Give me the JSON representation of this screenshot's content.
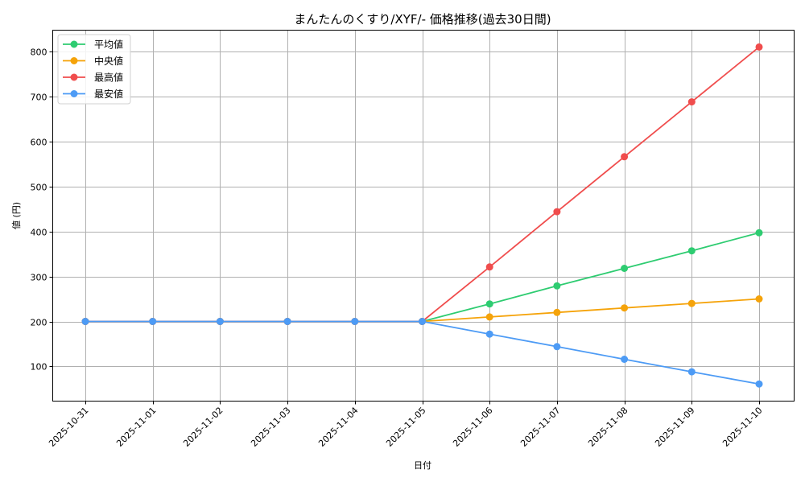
{
  "chart_data": {
    "type": "line",
    "title": "まんたんのくすり/XYF/- 価格推移(過去30日間)",
    "xlabel": "日付",
    "ylabel": "値 (円)",
    "categories": [
      "2025-10-31",
      "2025-11-01",
      "2025-11-02",
      "2025-11-03",
      "2025-11-04",
      "2025-11-05",
      "2025-11-06",
      "2025-11-07",
      "2025-11-08",
      "2025-11-09",
      "2025-11-10"
    ],
    "yticks": [
      100,
      200,
      300,
      400,
      500,
      600,
      700,
      800
    ],
    "ylim": [
      22,
      849
    ],
    "grid": true,
    "legend_position": "upper left",
    "series": [
      {
        "name": "平均値",
        "color": "#2ecc71",
        "values": [
          200,
          200,
          200,
          200,
          200,
          200,
          239,
          279,
          318,
          357,
          397
        ]
      },
      {
        "name": "中央値",
        "color": "#f5a30a",
        "values": [
          200,
          200,
          200,
          200,
          200,
          200,
          210,
          220,
          230,
          240,
          250
        ]
      },
      {
        "name": "最高値",
        "color": "#f04d4d",
        "values": [
          200,
          200,
          200,
          200,
          200,
          200,
          321,
          444,
          566,
          688,
          810
        ]
      },
      {
        "name": "最安値",
        "color": "#4d9bf5",
        "values": [
          200,
          200,
          200,
          200,
          200,
          200,
          172,
          144,
          116,
          88,
          61
        ]
      }
    ]
  }
}
